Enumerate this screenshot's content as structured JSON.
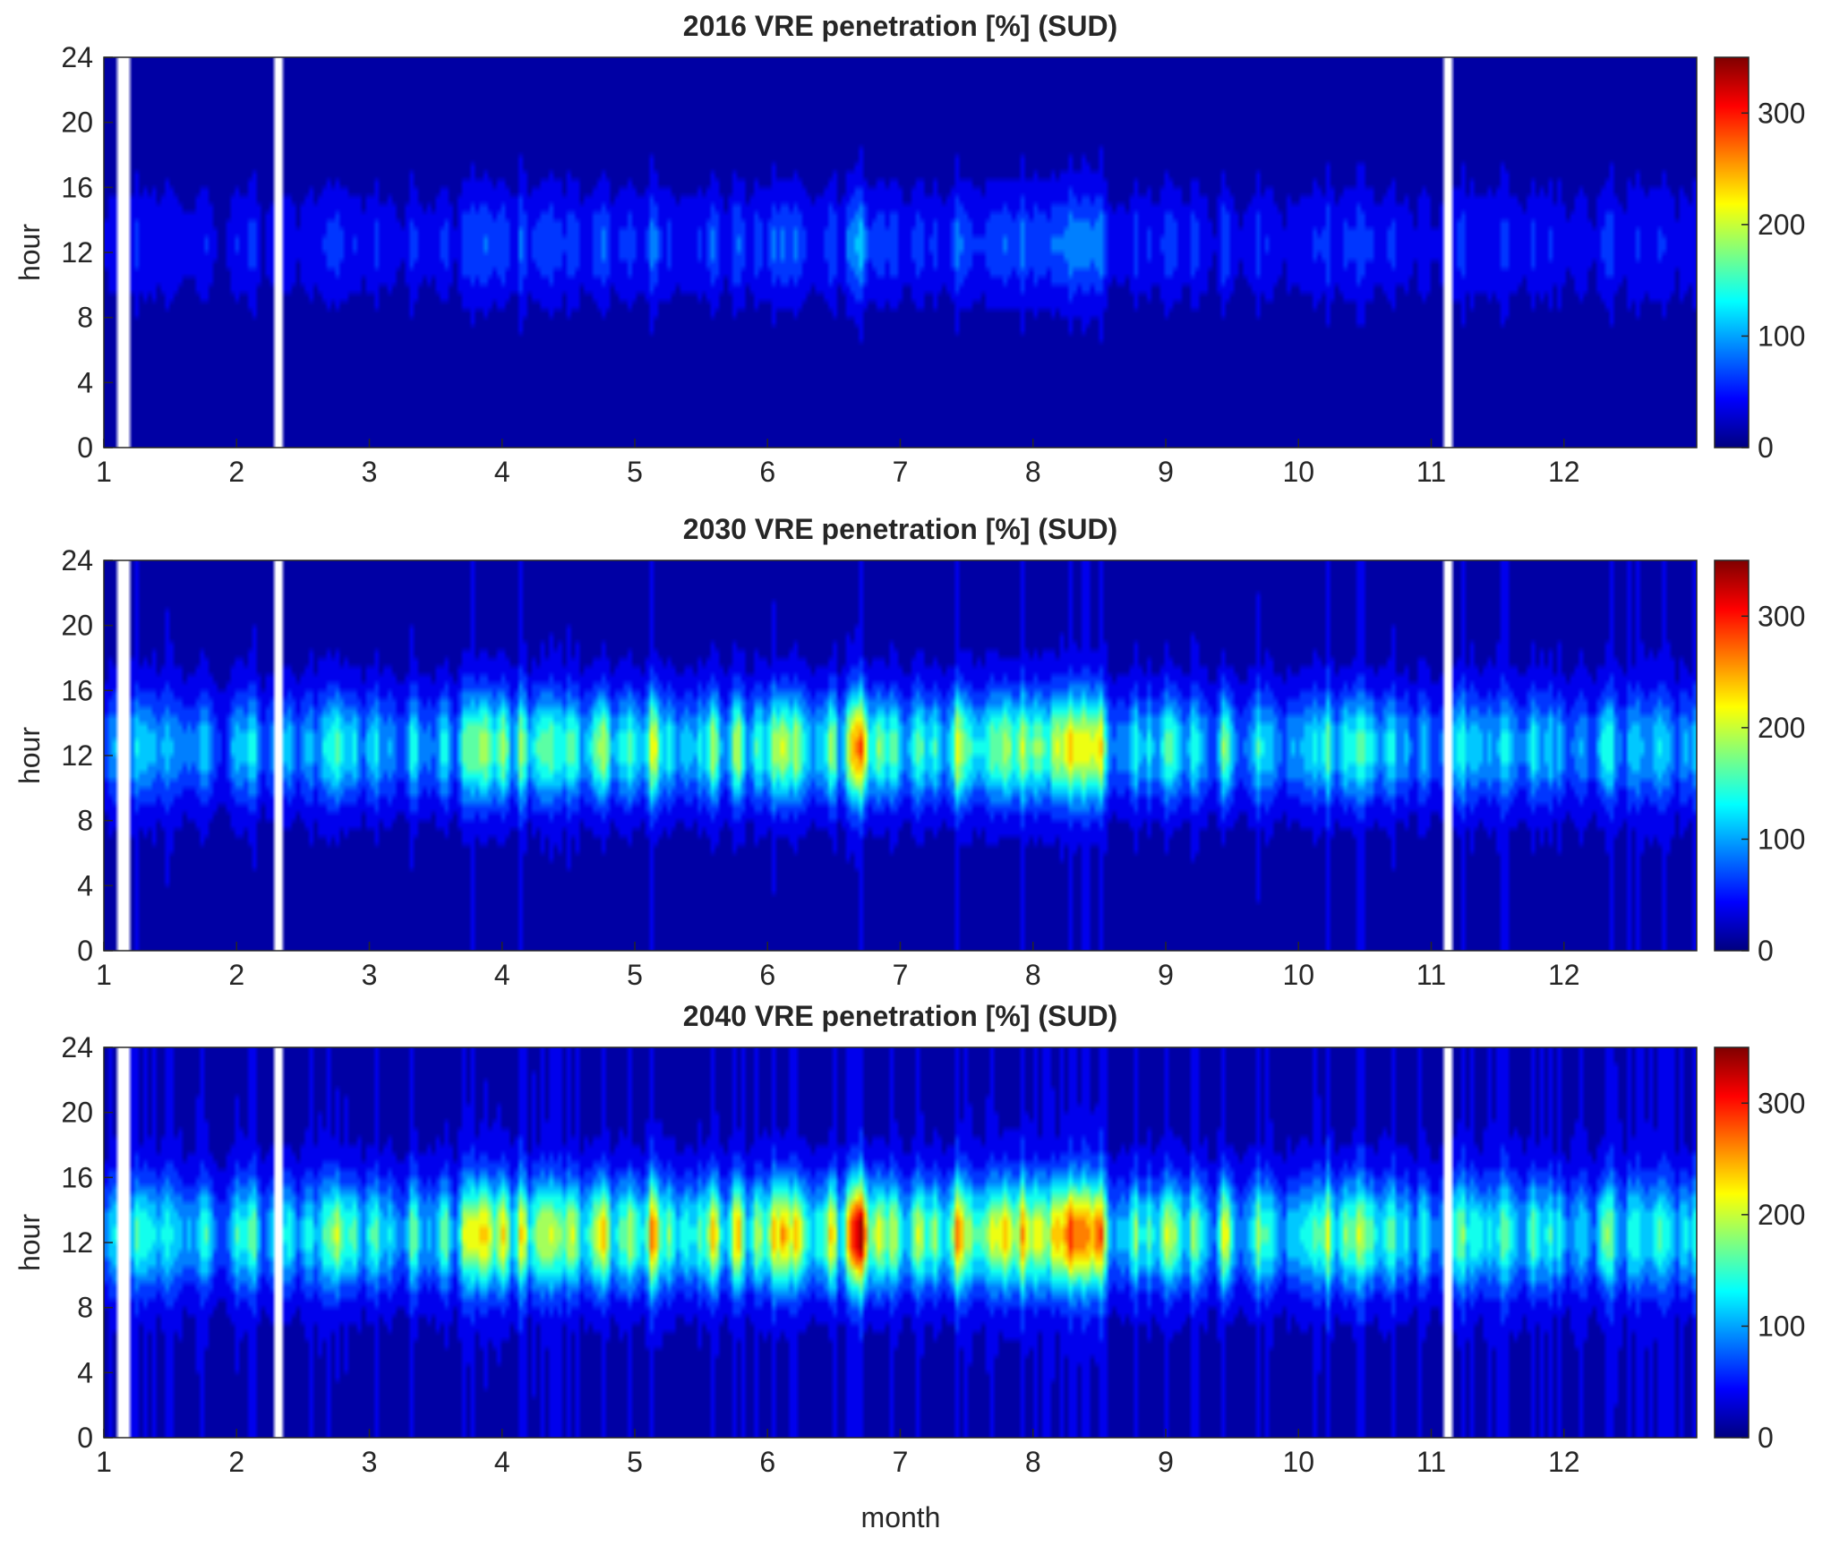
{
  "figure": {
    "xlabel": "month",
    "colormap": "jet",
    "colormap_stops": [
      "#00007f",
      "#0000ff",
      "#007fff",
      "#00ffff",
      "#7fff7f",
      "#ffff00",
      "#ff7f00",
      "#ff0000",
      "#7f0000"
    ]
  },
  "chart_data": [
    {
      "type": "heatmap",
      "title": "2016 VRE penetration [%] (SUD)",
      "xlabel": "",
      "ylabel": "hour",
      "x_ticks": [
        "1",
        "2",
        "3",
        "4",
        "5",
        "6",
        "7",
        "8",
        "9",
        "10",
        "11",
        "12"
      ],
      "y_ticks": [
        "0",
        "4",
        "8",
        "12",
        "16",
        "20",
        "24"
      ],
      "xlim": [
        1,
        13
      ],
      "ylim": [
        0,
        24
      ],
      "colorbar_ticks": [
        "0",
        "100",
        "200",
        "300"
      ],
      "clim": [
        0,
        350
      ],
      "midday_peak_percent": 70,
      "night_level_percent": 20,
      "grid": false
    },
    {
      "type": "heatmap",
      "title": "2030 VRE penetration [%] (SUD)",
      "xlabel": "",
      "ylabel": "hour",
      "x_ticks": [
        "1",
        "2",
        "3",
        "4",
        "5",
        "6",
        "7",
        "8",
        "9",
        "10",
        "11",
        "12"
      ],
      "y_ticks": [
        "0",
        "4",
        "8",
        "12",
        "16",
        "20",
        "24"
      ],
      "xlim": [
        1,
        13
      ],
      "ylim": [
        0,
        24
      ],
      "colorbar_ticks": [
        "0",
        "100",
        "200",
        "300"
      ],
      "clim": [
        0,
        350
      ],
      "midday_peak_percent": 190,
      "night_level_percent": 30,
      "grid": false
    },
    {
      "type": "heatmap",
      "title": "2040 VRE penetration [%] (SUD)",
      "xlabel": "month",
      "ylabel": "hour",
      "x_ticks": [
        "1",
        "2",
        "3",
        "4",
        "5",
        "6",
        "7",
        "8",
        "9",
        "10",
        "11",
        "12"
      ],
      "y_ticks": [
        "0",
        "4",
        "8",
        "12",
        "16",
        "20",
        "24"
      ],
      "xlim": [
        1,
        13
      ],
      "ylim": [
        0,
        24
      ],
      "colorbar_ticks": [
        "0",
        "100",
        "200",
        "300"
      ],
      "clim": [
        0,
        350
      ],
      "midday_peak_percent": 230,
      "night_level_percent": 40,
      "grid": false
    }
  ]
}
